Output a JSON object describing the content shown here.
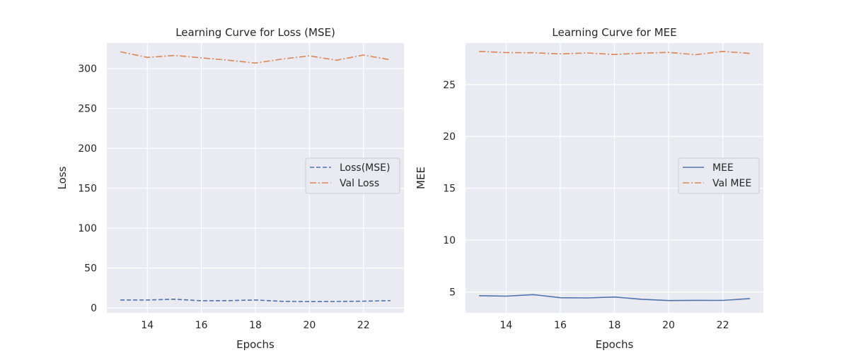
{
  "chart_data": [
    {
      "type": "line",
      "title": "Learning Curve for Loss (MSE)",
      "xlabel": "Epochs",
      "ylabel": "Loss",
      "xlim": [
        12.5,
        23.5
      ],
      "ylim": [
        -6,
        332
      ],
      "xticks": [
        14,
        16,
        18,
        20,
        22
      ],
      "yticks": [
        0,
        50,
        100,
        150,
        200,
        250,
        300
      ],
      "grid": true,
      "legend_position": "center-right",
      "x": [
        13,
        14,
        15,
        16,
        17,
        18,
        19,
        20,
        21,
        22,
        23
      ],
      "series": [
        {
          "name": "Loss(MSE)",
          "color": "#4c72b0",
          "style": "dashed",
          "values": [
            10,
            10,
            11,
            9,
            9.2,
            10,
            8.3,
            8,
            8.2,
            8.5,
            9.2
          ]
        },
        {
          "name": "Val Loss",
          "color": "#dd8452",
          "style": "dashdot",
          "values": [
            321,
            314,
            316.5,
            313.5,
            310.5,
            307,
            312,
            316,
            310.5,
            317,
            311
          ]
        }
      ]
    },
    {
      "type": "line",
      "title": "Learning Curve for MEE",
      "xlabel": "Epochs",
      "ylabel": "MEE",
      "xlim": [
        12.5,
        23.5
      ],
      "ylim": [
        3.0,
        29.0
      ],
      "xticks": [
        14,
        16,
        18,
        20,
        22
      ],
      "yticks": [
        5,
        10,
        15,
        20,
        25
      ],
      "grid": true,
      "legend_position": "center-right",
      "x": [
        13,
        14,
        15,
        16,
        17,
        18,
        19,
        20,
        21,
        22,
        23
      ],
      "series": [
        {
          "name": "MEE",
          "color": "#4c72b0",
          "style": "solid",
          "values": [
            4.65,
            4.6,
            4.75,
            4.45,
            4.43,
            4.52,
            4.3,
            4.18,
            4.2,
            4.19,
            4.37
          ]
        },
        {
          "name": "Val MEE",
          "color": "#dd8452",
          "style": "dashdot",
          "values": [
            28.2,
            28.08,
            28.07,
            27.95,
            28.05,
            27.9,
            28.03,
            28.1,
            27.88,
            28.2,
            28.0
          ]
        }
      ]
    }
  ]
}
